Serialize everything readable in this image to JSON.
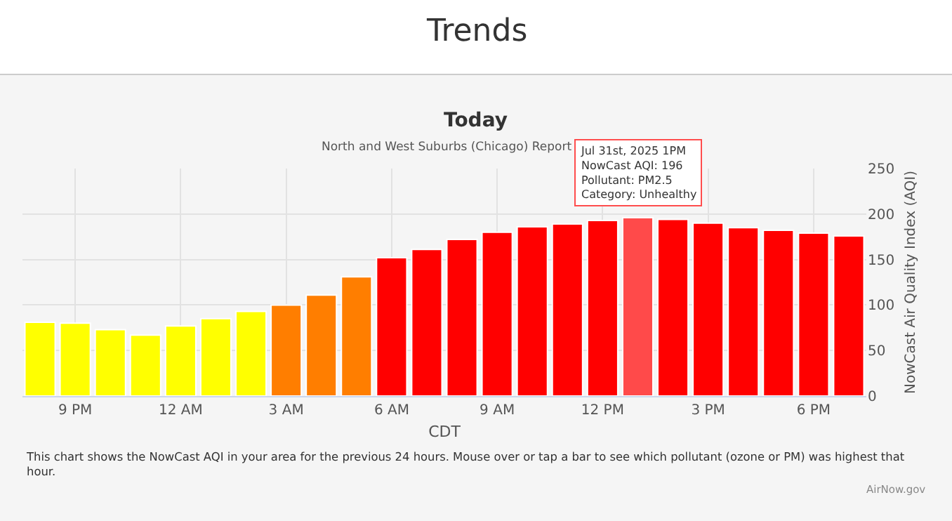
{
  "chart_data": {
    "type": "bar",
    "title": "Today",
    "subtitle": "North and West Suburbs (Chicago) Report",
    "xlabel": "CDT",
    "ylabel": "NowCast Air Quality Index (AQI)",
    "categories": [
      null,
      "9 PM",
      null,
      null,
      "12 AM",
      null,
      null,
      "3 AM",
      null,
      null,
      "6 AM",
      null,
      null,
      "9 AM",
      null,
      null,
      "12 PM",
      null,
      null,
      "3 PM",
      null,
      null,
      "6 PM",
      null
    ],
    "values": [
      81,
      80,
      73,
      67,
      77,
      85,
      93,
      100,
      111,
      131,
      152,
      161,
      172,
      180,
      186,
      189,
      193,
      196,
      194,
      190,
      185,
      182,
      179,
      176
    ],
    "colors": [
      "#ffff00",
      "#ffff00",
      "#ffff00",
      "#ffff00",
      "#ffff00",
      "#ffff00",
      "#ffff00",
      "#ff7e00",
      "#ff7e00",
      "#ff7e00",
      "#ff0000",
      "#ff0000",
      "#ff0000",
      "#ff0000",
      "#ff0000",
      "#ff0000",
      "#ff0000",
      "#ff4a4a",
      "#ff0000",
      "#ff0000",
      "#ff0000",
      "#ff0000",
      "#ff0000",
      "#ff0000"
    ],
    "ylim": [
      0,
      250
    ],
    "yticks": [
      0,
      50,
      100,
      150,
      200,
      250
    ],
    "grid": true,
    "annotations": [
      "Trends",
      {
        "text": "Jul 31st, 2025 1PM\nNowCast AQI: 196\nPollutant: PM2.5\nCategory: Unhealthy",
        "y": 196
      },
      "This chart shows the NowCast AQI in your area for the previous 24 hours. Mouse over or tap a bar to see which pollutant (ozone or PM) was highest that\nhour.",
      "AirNow.gov"
    ]
  }
}
